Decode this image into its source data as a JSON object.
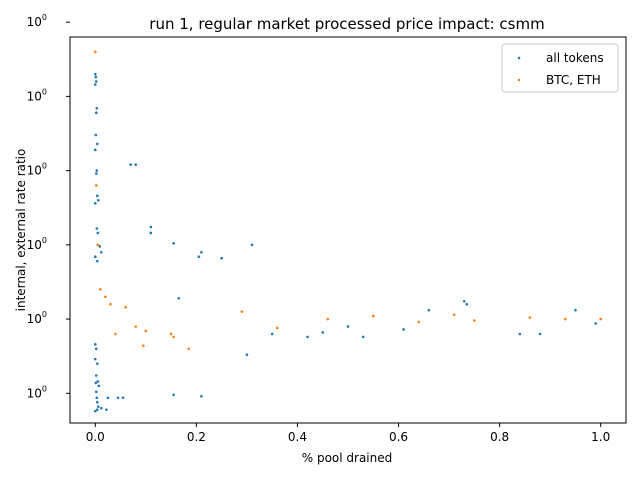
{
  "chart_data": {
    "type": "scatter",
    "title": "run 1, regular market processed price impact: csmm",
    "xlabel": "% pool drained",
    "ylabel": "internal, external rate ratio",
    "xlim": [
      -0.05,
      1.05
    ],
    "ylim": [
      0.93,
      1.19
    ],
    "y_scale": "log",
    "grid": false,
    "legend_position": "top-right",
    "x_ticks": [
      {
        "value": 0.0,
        "label": "0.0"
      },
      {
        "value": 0.2,
        "label": "0.2"
      },
      {
        "value": 0.4,
        "label": "0.4"
      },
      {
        "value": 0.6,
        "label": "0.6"
      },
      {
        "value": 0.8,
        "label": "0.8"
      },
      {
        "value": 1.0,
        "label": "1.0"
      }
    ],
    "y_ticks": [
      {
        "value": 0.95,
        "base": "10",
        "exp": "0"
      },
      {
        "value": 1.0,
        "base": "10",
        "exp": "0"
      },
      {
        "value": 1.05,
        "base": "10",
        "exp": "0"
      },
      {
        "value": 1.1,
        "base": "10",
        "exp": "0"
      },
      {
        "value": 1.15,
        "base": "10",
        "exp": "0"
      },
      {
        "value": 1.2,
        "base": "10",
        "exp": "0"
      }
    ],
    "series": [
      {
        "name": "all tokens",
        "color": "#1f77b4",
        "points": [
          [
            0.0,
            1.165
          ],
          [
            0.001,
            1.163
          ],
          [
            0.002,
            1.16
          ],
          [
            0.0,
            1.158
          ],
          [
            0.003,
            1.142
          ],
          [
            0.002,
            1.139
          ],
          [
            0.001,
            1.124
          ],
          [
            0.004,
            1.118
          ],
          [
            0.0,
            1.114
          ],
          [
            0.003,
            1.1
          ],
          [
            0.002,
            1.098
          ],
          [
            0.004,
            1.083
          ],
          [
            0.006,
            1.08
          ],
          [
            0.0,
            1.078
          ],
          [
            0.003,
            1.061
          ],
          [
            0.005,
            1.058
          ],
          [
            0.009,
            1.049
          ],
          [
            0.012,
            1.045
          ],
          [
            0.0,
            1.042
          ],
          [
            0.004,
            1.039
          ],
          [
            0.07,
            1.104
          ],
          [
            0.08,
            1.104
          ],
          [
            0.155,
            1.051
          ],
          [
            0.11,
            1.062
          ],
          [
            0.11,
            1.058
          ],
          [
            0.205,
            1.042
          ],
          [
            0.21,
            1.045
          ],
          [
            0.25,
            1.041
          ],
          [
            0.31,
            1.05
          ],
          [
            0.165,
            1.014
          ],
          [
            0.0,
            0.983
          ],
          [
            0.002,
            0.98
          ],
          [
            0.0,
            0.973
          ],
          [
            0.004,
            0.97
          ],
          [
            0.002,
            0.962
          ],
          [
            0.005,
            0.958
          ],
          [
            0.001,
            0.957
          ],
          [
            0.007,
            0.955
          ],
          [
            0.002,
            0.951
          ],
          [
            0.003,
            0.947
          ],
          [
            0.004,
            0.944
          ],
          [
            0.006,
            0.941
          ],
          [
            0.012,
            0.94
          ],
          [
            0.0,
            0.938
          ],
          [
            0.004,
            0.939
          ],
          [
            0.025,
            0.947
          ],
          [
            0.022,
            0.939
          ],
          [
            0.045,
            0.947
          ],
          [
            0.055,
            0.947
          ],
          [
            0.155,
            0.949
          ],
          [
            0.21,
            0.948
          ],
          [
            0.3,
            0.976
          ],
          [
            0.5,
            0.995
          ],
          [
            0.53,
            0.988
          ],
          [
            0.73,
            1.012
          ],
          [
            0.735,
            1.01
          ],
          [
            0.84,
            0.99
          ],
          [
            0.88,
            0.99
          ],
          [
            0.95,
            1.006
          ],
          [
            0.99,
            0.997
          ],
          [
            0.35,
            0.99
          ],
          [
            0.42,
            0.988
          ],
          [
            0.45,
            0.991
          ],
          [
            0.61,
            0.993
          ],
          [
            0.66,
            1.006
          ]
        ]
      },
      {
        "name": "BTC, ETH",
        "color": "#ff7f0e",
        "points": [
          [
            0.0,
            1.18
          ],
          [
            0.002,
            1.09
          ],
          [
            0.005,
            1.05
          ],
          [
            0.01,
            1.02
          ],
          [
            0.02,
            1.015
          ],
          [
            0.03,
            1.01
          ],
          [
            0.04,
            0.99
          ],
          [
            0.06,
            1.008
          ],
          [
            0.08,
            0.995
          ],
          [
            0.1,
            0.992
          ],
          [
            0.095,
            0.982
          ],
          [
            0.15,
            0.99
          ],
          [
            0.155,
            0.988
          ],
          [
            0.185,
            0.98
          ],
          [
            0.29,
            1.005
          ],
          [
            0.36,
            0.994
          ],
          [
            0.46,
            1.0
          ],
          [
            0.55,
            1.002
          ],
          [
            0.64,
            0.998
          ],
          [
            0.71,
            1.003
          ],
          [
            0.75,
            0.999
          ],
          [
            0.86,
            1.001
          ],
          [
            0.93,
            1.0
          ],
          [
            1.0,
            1.0
          ]
        ]
      }
    ]
  }
}
